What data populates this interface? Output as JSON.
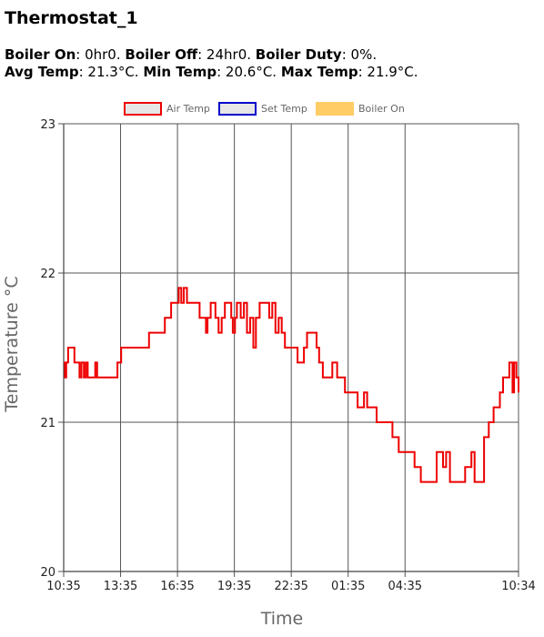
{
  "title": "Thermostat_1",
  "summary": {
    "boiler_on_label": "Boiler On",
    "boiler_on_value": ": 0hr0.",
    "boiler_off_label": "Boiler Off",
    "boiler_off_value": ": 24hr0.",
    "boiler_duty_label": "Boiler Duty",
    "boiler_duty_value": ": 0%.",
    "avg_temp_label": "Avg Temp",
    "avg_temp_value": ": 21.3°C.",
    "min_temp_label": "Min Temp",
    "min_temp_value": ": 20.6°C.",
    "max_temp_label": "Max Temp",
    "max_temp_value": ": 21.9°C."
  },
  "chart_data": {
    "type": "line",
    "xlabel": "Time",
    "ylabel": "Temperature °C",
    "ylim": [
      20,
      23
    ],
    "yticks": [
      "20",
      "21",
      "22",
      "23"
    ],
    "xlim": [
      0,
      1439
    ],
    "xticks": [
      {
        "t": 0,
        "label": "10:35"
      },
      {
        "t": 180,
        "label": "13:35"
      },
      {
        "t": 360,
        "label": "16:35"
      },
      {
        "t": 540,
        "label": "19:35"
      },
      {
        "t": 720,
        "label": "22:35"
      },
      {
        "t": 900,
        "label": "01:35"
      },
      {
        "t": 1080,
        "label": "04:35"
      },
      {
        "t": 1439,
        "label": "10:34"
      }
    ],
    "grid": true,
    "legend_position": "top",
    "legend": [
      {
        "name": "Air Temp",
        "stroke": "#ee0000",
        "fill": "#e6e6e6"
      },
      {
        "name": "Set Temp",
        "stroke": "#0000cc",
        "fill": "#e6e6e6"
      },
      {
        "name": "Boiler On",
        "stroke": "#ffcc66",
        "fill": "#ffcc66"
      }
    ],
    "series": [
      {
        "name": "Air Temp",
        "color": "#ee0000",
        "points": [
          [
            0,
            21.4
          ],
          [
            4,
            21.3
          ],
          [
            8,
            21.4
          ],
          [
            14,
            21.5
          ],
          [
            30,
            21.5
          ],
          [
            34,
            21.4
          ],
          [
            50,
            21.3
          ],
          [
            56,
            21.4
          ],
          [
            64,
            21.3
          ],
          [
            70,
            21.4
          ],
          [
            76,
            21.3
          ],
          [
            84,
            21.3
          ],
          [
            92,
            21.3
          ],
          [
            100,
            21.4
          ],
          [
            106,
            21.3
          ],
          [
            160,
            21.3
          ],
          [
            170,
            21.4
          ],
          [
            182,
            21.5
          ],
          [
            260,
            21.5
          ],
          [
            270,
            21.6
          ],
          [
            300,
            21.6
          ],
          [
            320,
            21.7
          ],
          [
            340,
            21.8
          ],
          [
            355,
            21.8
          ],
          [
            364,
            21.9
          ],
          [
            372,
            21.8
          ],
          [
            380,
            21.9
          ],
          [
            390,
            21.8
          ],
          [
            420,
            21.8
          ],
          [
            430,
            21.7
          ],
          [
            450,
            21.6
          ],
          [
            455,
            21.7
          ],
          [
            465,
            21.8
          ],
          [
            480,
            21.7
          ],
          [
            490,
            21.6
          ],
          [
            500,
            21.7
          ],
          [
            510,
            21.8
          ],
          [
            530,
            21.7
          ],
          [
            535,
            21.6
          ],
          [
            542,
            21.7
          ],
          [
            548,
            21.8
          ],
          [
            560,
            21.7
          ],
          [
            570,
            21.8
          ],
          [
            580,
            21.6
          ],
          [
            590,
            21.7
          ],
          [
            600,
            21.5
          ],
          [
            608,
            21.7
          ],
          [
            620,
            21.8
          ],
          [
            640,
            21.8
          ],
          [
            650,
            21.7
          ],
          [
            660,
            21.8
          ],
          [
            670,
            21.6
          ],
          [
            680,
            21.7
          ],
          [
            690,
            21.6
          ],
          [
            700,
            21.5
          ],
          [
            720,
            21.5
          ],
          [
            740,
            21.4
          ],
          [
            760,
            21.5
          ],
          [
            770,
            21.6
          ],
          [
            790,
            21.6
          ],
          [
            800,
            21.5
          ],
          [
            808,
            21.4
          ],
          [
            820,
            21.3
          ],
          [
            840,
            21.3
          ],
          [
            850,
            21.4
          ],
          [
            865,
            21.3
          ],
          [
            890,
            21.2
          ],
          [
            920,
            21.2
          ],
          [
            930,
            21.1
          ],
          [
            950,
            21.2
          ],
          [
            960,
            21.1
          ],
          [
            980,
            21.1
          ],
          [
            990,
            21.0
          ],
          [
            1020,
            21.0
          ],
          [
            1040,
            20.9
          ],
          [
            1050,
            20.9
          ],
          [
            1060,
            20.8
          ],
          [
            1090,
            20.8
          ],
          [
            1110,
            20.7
          ],
          [
            1130,
            20.6
          ],
          [
            1160,
            20.6
          ],
          [
            1180,
            20.8
          ],
          [
            1200,
            20.7
          ],
          [
            1210,
            20.8
          ],
          [
            1222,
            20.6
          ],
          [
            1232,
            20.6
          ],
          [
            1260,
            20.6
          ],
          [
            1270,
            20.7
          ],
          [
            1290,
            20.8
          ],
          [
            1300,
            20.6
          ],
          [
            1316,
            20.6
          ],
          [
            1330,
            20.9
          ],
          [
            1345,
            21.0
          ],
          [
            1360,
            21.1
          ],
          [
            1380,
            21.2
          ],
          [
            1390,
            21.3
          ],
          [
            1405,
            21.3
          ],
          [
            1410,
            21.4
          ],
          [
            1420,
            21.2
          ],
          [
            1425,
            21.4
          ],
          [
            1432,
            21.3
          ],
          [
            1439,
            21.2
          ]
        ]
      }
    ]
  }
}
